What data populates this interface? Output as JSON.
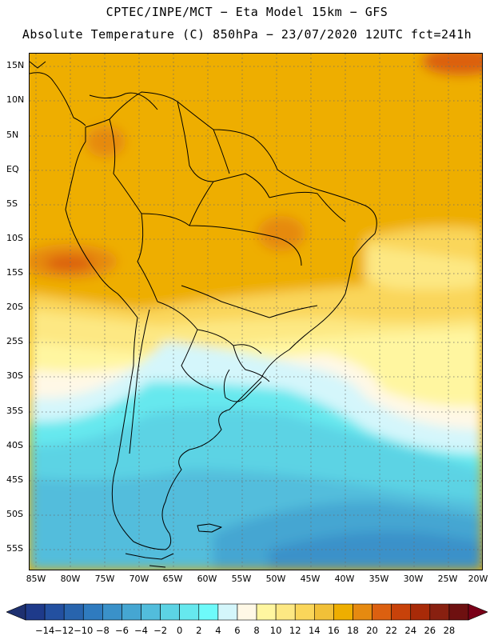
{
  "header": {
    "line1": "CPTEC/INPE/MCT −  Eta Model 15km − GFS",
    "line2": "Absolute Temperature (C) 850hPa − 23/07/2020 12UTC fct=241h"
  },
  "axes": {
    "lat_labels": [
      "15N",
      "10N",
      "5N",
      "EQ",
      "5S",
      "10S",
      "15S",
      "20S",
      "25S",
      "30S",
      "35S",
      "40S",
      "45S",
      "50S",
      "55S"
    ],
    "lon_labels": [
      "85W",
      "80W",
      "75W",
      "70W",
      "65W",
      "60W",
      "55W",
      "50W",
      "45W",
      "40W",
      "35W",
      "30W",
      "25W",
      "20W"
    ]
  },
  "colorbar": {
    "labels": [
      "−14",
      "−12",
      "−10",
      "−8",
      "−6",
      "−4",
      "−2",
      "0",
      "2",
      "4",
      "6",
      "8",
      "10",
      "12",
      "14",
      "16",
      "18",
      "20",
      "22",
      "24",
      "26",
      "28"
    ],
    "colors": [
      "#1e3a8a",
      "#2350a0",
      "#2864ad",
      "#2f7bbf",
      "#3a91c9",
      "#45a6d2",
      "#52bddc",
      "#5cd3e4",
      "#66e8ee",
      "#6efafa",
      "#d4f6fb",
      "#fff8e6",
      "#fff6a0",
      "#fde883",
      "#fad65a",
      "#f1c038",
      "#eeae00",
      "#e68a10",
      "#dc6010",
      "#c8420a",
      "#a82a08",
      "#882010",
      "#6e1010"
    ],
    "left_arrow_color": "#1e3070",
    "right_arrow_color": "#7a0018"
  }
}
